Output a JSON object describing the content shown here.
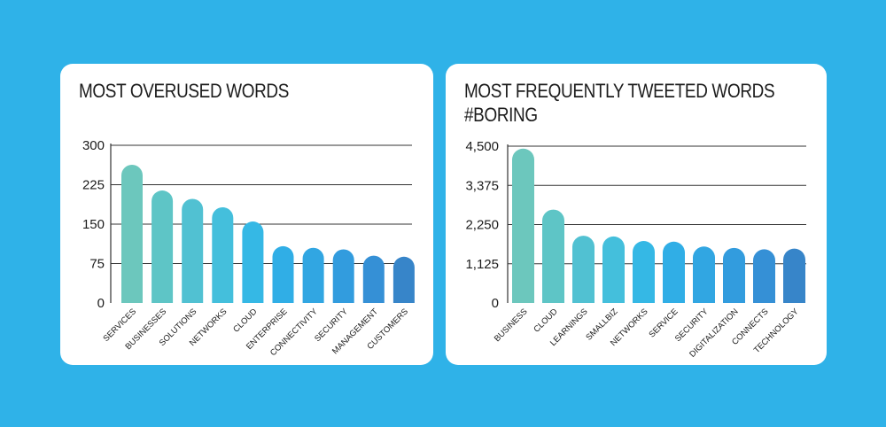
{
  "colors": {
    "background": "#2fb2e8",
    "card": "#ffffff",
    "grid": "#333333",
    "bar_palette": [
      "#6cc7bd",
      "#5ec5c6",
      "#51c1d2",
      "#44bfdc",
      "#35b8e5",
      "#30aee6",
      "#31a6e2",
      "#329cde",
      "#3590d6",
      "#3785c9"
    ]
  },
  "chart_data": [
    {
      "type": "bar",
      "title": "MOST OVERUSED WORDS",
      "categories": [
        "SERVICES",
        "BUSINESSES",
        "SOLUTIONS",
        "NETWORKS",
        "CLOUD",
        "ENTERPRISE",
        "CONNECTIVITY",
        "SECURITY",
        "MANAGEMENT",
        "CUSTOMERS"
      ],
      "values": [
        263,
        214,
        198,
        182,
        155,
        108,
        105,
        102,
        90,
        88
      ],
      "ylim": [
        0,
        300
      ],
      "yticks": [
        0,
        75,
        150,
        225,
        300
      ],
      "ytick_labels": [
        "0",
        "75",
        "150",
        "225",
        "300"
      ],
      "xlabel": "",
      "ylabel": "",
      "grid": true
    },
    {
      "type": "bar",
      "title": [
        "MOST FREQUENTLY TWEETED WORDS",
        "#BORING"
      ],
      "categories": [
        "BUSINESS",
        "CLOUD",
        "LEARNINGS",
        "SMALLBIZ",
        "NETWORKS",
        "SERVICE",
        "SECURITY",
        "DIGITALIZATION",
        "CONNECTS",
        "TECHNOLOGY"
      ],
      "values": [
        4430,
        2680,
        1930,
        1910,
        1780,
        1760,
        1620,
        1580,
        1540,
        1560
      ],
      "ylim": [
        0,
        4500
      ],
      "yticks": [
        0,
        1125,
        2250,
        3375,
        4500
      ],
      "ytick_labels": [
        "0",
        "1,125",
        "2,250",
        "3,375",
        "4,500"
      ],
      "xlabel": "",
      "ylabel": "",
      "grid": true
    }
  ]
}
